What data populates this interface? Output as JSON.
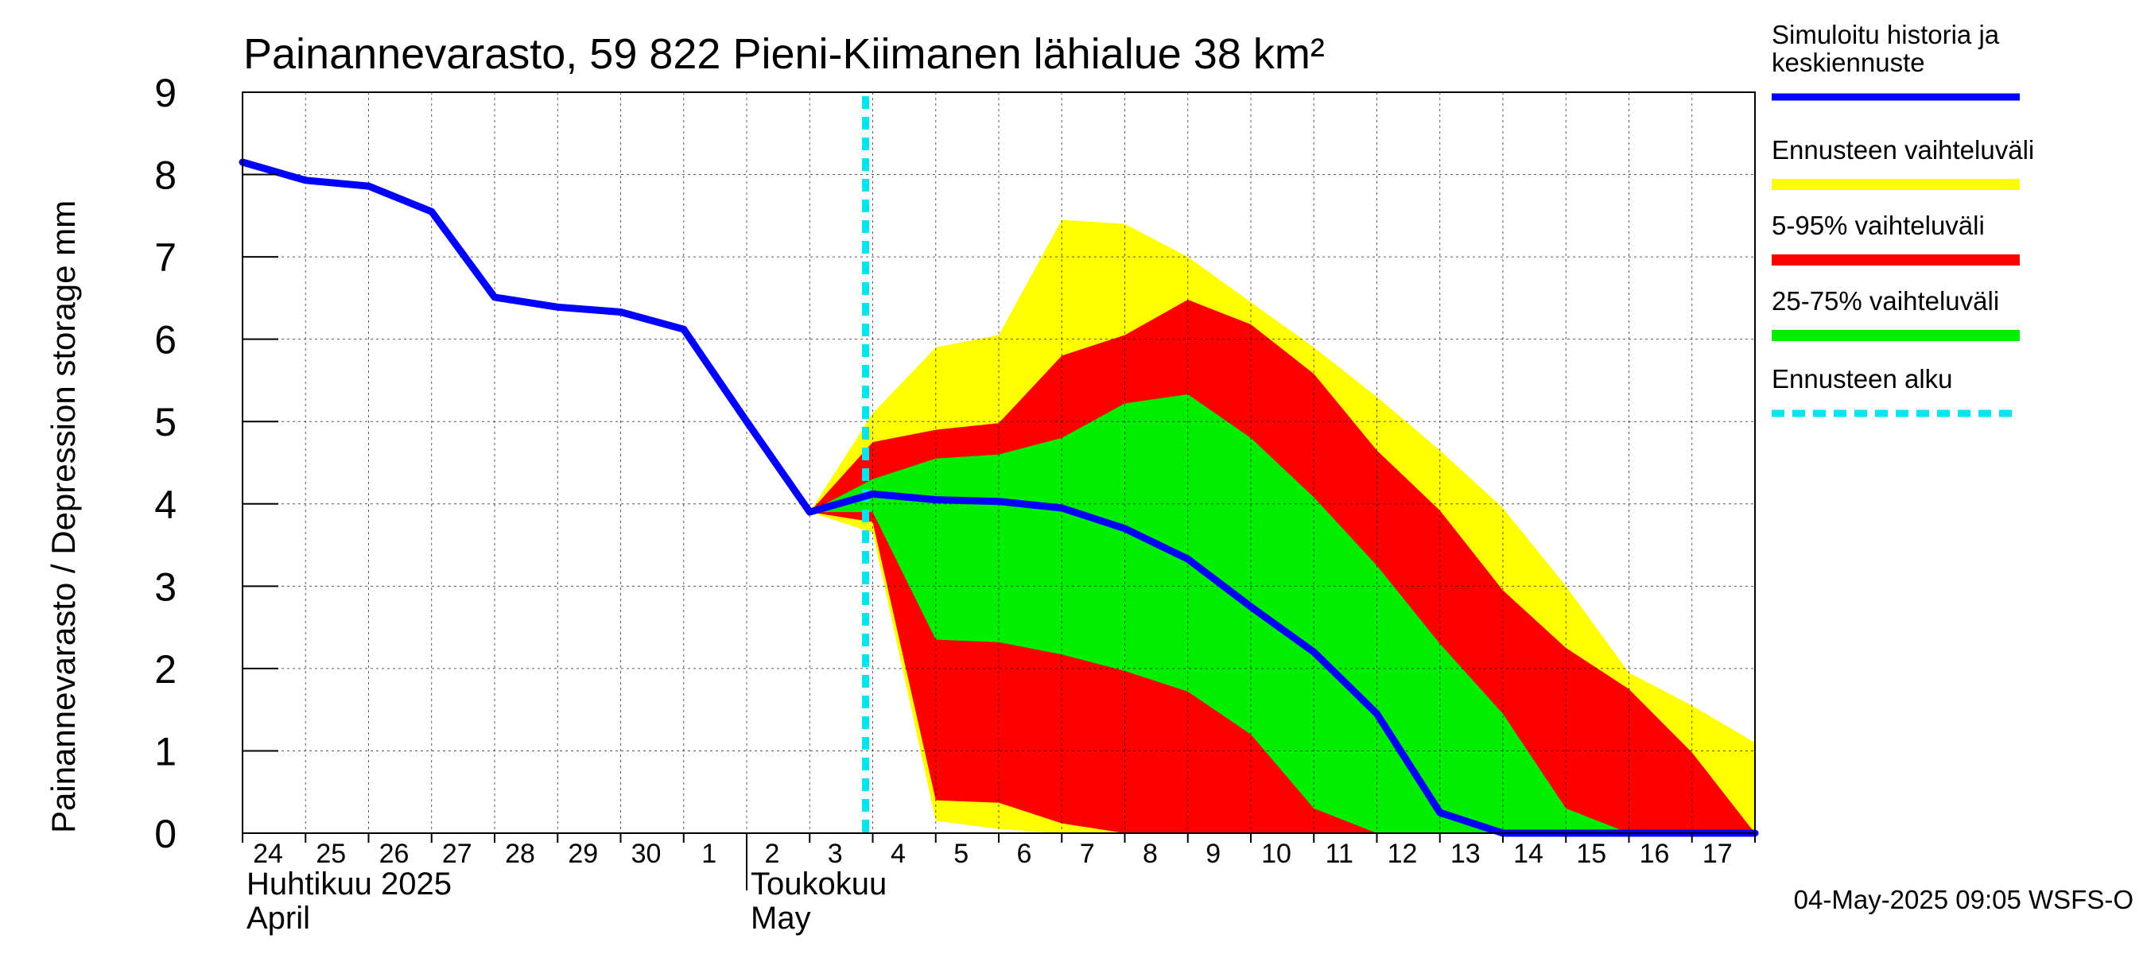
{
  "chart_data": {
    "type": "area",
    "title": "Painannevarasto, 59 822 Pieni-Kiimanen lähialue 38 km²",
    "ylabel": "Painannevarasto / Depression storage    mm",
    "ylim": [
      0,
      9
    ],
    "yticks": [
      0,
      1,
      2,
      3,
      4,
      5,
      6,
      7,
      8,
      9
    ],
    "x_start": "2025-04-24",
    "x_end": "2025-05-18",
    "xtick_labels": [
      "24",
      "25",
      "26",
      "27",
      "28",
      "29",
      "30",
      "1",
      "2",
      "3",
      "4",
      "5",
      "6",
      "7",
      "8",
      "9",
      "10",
      "11",
      "12",
      "13",
      "14",
      "15",
      "16",
      "17"
    ],
    "month_labels": [
      {
        "line1": "Huhtikuu  2025",
        "line2": "April",
        "at": "2025-04-24"
      },
      {
        "line1": "Toukokuu",
        "line2": "May",
        "at": "2025-05-02"
      }
    ],
    "grid": true,
    "forecast_start": "2025-05-04",
    "colors": {
      "median": "#0000ff",
      "range_full": "#ffff00",
      "range_5_95": "#ff0000",
      "range_25_75": "#00ee00",
      "forecast_start": "#00e5ee"
    },
    "series": [
      {
        "name": "Simuloitu historia ja keskiennuste",
        "role": "median",
        "x": [
          "2025-04-24",
          "2025-04-25",
          "2025-04-26",
          "2025-04-27",
          "2025-04-28",
          "2025-04-29",
          "2025-04-30",
          "2025-05-01",
          "2025-05-02",
          "2025-05-03",
          "2025-05-04",
          "2025-05-05",
          "2025-05-06",
          "2025-05-07",
          "2025-05-08",
          "2025-05-09",
          "2025-05-10",
          "2025-05-11",
          "2025-05-12",
          "2025-05-13",
          "2025-05-14",
          "2025-05-15",
          "2025-05-16",
          "2025-05-17",
          "2025-05-18"
        ],
        "y": [
          8.15,
          7.93,
          7.86,
          7.55,
          6.51,
          6.39,
          6.33,
          6.12,
          5.0,
          3.9,
          4.12,
          4.05,
          4.03,
          3.95,
          3.7,
          3.33,
          2.75,
          2.2,
          1.45,
          0.25,
          0.0,
          0.0,
          0.0,
          0.0,
          0.0
        ]
      },
      {
        "name": "Ennusteen vaihteluväli",
        "role": "range_full",
        "x": [
          "2025-05-03",
          "2025-05-04",
          "2025-05-05",
          "2025-05-06",
          "2025-05-07",
          "2025-05-08",
          "2025-05-09",
          "2025-05-10",
          "2025-05-11",
          "2025-05-12",
          "2025-05-13",
          "2025-05-14",
          "2025-05-15",
          "2025-05-16",
          "2025-05-17",
          "2025-05-18"
        ],
        "upper": [
          3.9,
          5.1,
          5.9,
          6.05,
          7.45,
          7.4,
          7.0,
          6.45,
          5.9,
          5.3,
          4.65,
          3.95,
          3.0,
          1.95,
          1.55,
          1.1
        ],
        "lower": [
          3.9,
          3.65,
          0.15,
          0.05,
          0.0,
          0.0,
          0.0,
          0.0,
          0.0,
          0.0,
          0.0,
          0.0,
          0.0,
          0.0,
          0.0,
          0.0
        ]
      },
      {
        "name": "5-95% vaihteluväli",
        "role": "range_5_95",
        "x": [
          "2025-05-03",
          "2025-05-04",
          "2025-05-05",
          "2025-05-06",
          "2025-05-07",
          "2025-05-08",
          "2025-05-09",
          "2025-05-10",
          "2025-05-11",
          "2025-05-12",
          "2025-05-13",
          "2025-05-14",
          "2025-05-15",
          "2025-05-16",
          "2025-05-17",
          "2025-05-18"
        ],
        "upper": [
          3.9,
          4.75,
          4.9,
          4.98,
          5.8,
          6.05,
          6.48,
          6.18,
          5.58,
          4.65,
          3.92,
          2.95,
          2.25,
          1.75,
          0.98,
          0.0
        ],
        "lower": [
          3.9,
          3.78,
          0.4,
          0.37,
          0.12,
          0.0,
          0.0,
          0.0,
          0.0,
          0.0,
          0.0,
          0.0,
          0.0,
          0.0,
          0.0,
          0.0
        ]
      },
      {
        "name": "25-75% vaihteluväli",
        "role": "range_25_75",
        "x": [
          "2025-05-03",
          "2025-05-04",
          "2025-05-05",
          "2025-05-06",
          "2025-05-07",
          "2025-05-08",
          "2025-05-09",
          "2025-05-10",
          "2025-05-11",
          "2025-05-12",
          "2025-05-13",
          "2025-05-14",
          "2025-05-15",
          "2025-05-16",
          "2025-05-17",
          "2025-05-18"
        ],
        "upper": [
          3.9,
          4.3,
          4.55,
          4.6,
          4.8,
          5.22,
          5.33,
          4.8,
          4.08,
          3.25,
          2.3,
          1.45,
          0.3,
          0.0,
          0.0,
          0.0
        ],
        "lower": [
          3.9,
          3.9,
          2.35,
          2.32,
          2.17,
          1.97,
          1.72,
          1.2,
          0.3,
          0.0,
          0.0,
          0.0,
          0.0,
          0.0,
          0.0,
          0.0
        ]
      }
    ],
    "legend": [
      {
        "label": "Simuloitu historia ja\nkeskiennuste",
        "style": "line",
        "color": "#0000ff"
      },
      {
        "label": "Ennusteen vaihteluväli",
        "style": "band",
        "color": "#ffff00"
      },
      {
        "label": "5-95% vaihteluväli",
        "style": "band",
        "color": "#ff0000"
      },
      {
        "label": "25-75% vaihteluväli",
        "style": "band",
        "color": "#00ee00"
      },
      {
        "label": "Ennusteen alku",
        "style": "dashed",
        "color": "#00e5ee"
      }
    ],
    "legend_position": "right",
    "footer": "04-May-2025 09:05 WSFS-O"
  }
}
